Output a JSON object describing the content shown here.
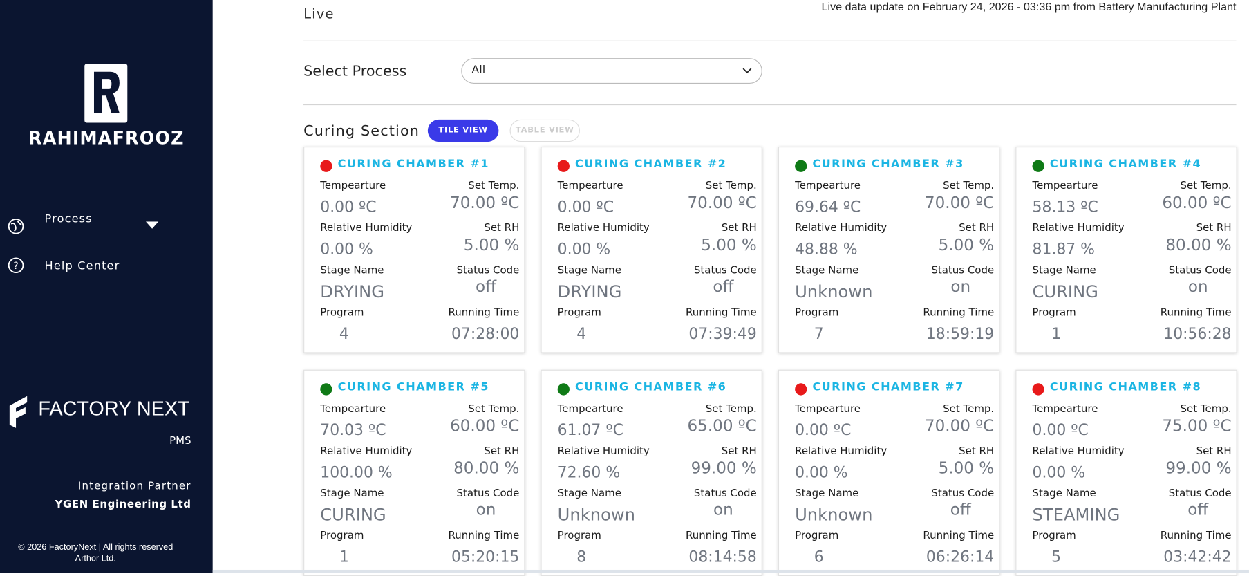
{
  "sidebar": {
    "brand": "RAHIMAFROOZ",
    "nav": [
      "Process",
      "Help Center"
    ],
    "product": "FACTORY NEXT",
    "product_sub": "PMS",
    "partner_label": "Integration Partner",
    "partner": "YGEN Engineering Ltd",
    "copyright": "© 2026 FactoryNext | All rights reserved",
    "copyright_2": "Arthor Ltd."
  },
  "header": {
    "title": "Live",
    "update": "Live data update on February 24, 2026 - 03:36 pm from Battery Manufacturing Plant"
  },
  "filter": {
    "label": "Select Process",
    "value": "All"
  },
  "section": {
    "title": "Curing Section",
    "tabs": [
      "TILE VIEW",
      "TABLE VIEW"
    ]
  },
  "labels": {
    "temp": "Tempearture",
    "set_temp": "Set Temp.",
    "rh": "Relative Humidity",
    "set_rh": "Set RH",
    "stage": "Stage Name",
    "status_code": "Status Code",
    "program": "Program",
    "running_time": "Running Time"
  },
  "chambers": [
    {
      "name": "CURING CHAMBER #1",
      "dot_color": "#e8191a",
      "temp": "0.00 ºC",
      "set_temp": "70.00 ºC",
      "rh": "0.00 %",
      "set_rh": "5.00 %",
      "stage": "DRYING",
      "status_code": "off",
      "program": "4",
      "running_time": "07:28:00"
    },
    {
      "name": "CURING CHAMBER #2",
      "dot_color": "#e8191a",
      "temp": "0.00 ºC",
      "set_temp": "70.00 ºC",
      "rh": "0.00 %",
      "set_rh": "5.00 %",
      "stage": "DRYING",
      "status_code": "off",
      "program": "4",
      "running_time": "07:39:49"
    },
    {
      "name": "CURING CHAMBER #3",
      "dot_color": "#0f7a16",
      "temp": "69.64 ºC",
      "set_temp": "70.00 ºC",
      "rh": "48.88 %",
      "set_rh": "5.00 %",
      "stage": "Unknown",
      "status_code": "on",
      "program": "7",
      "running_time": "18:59:19"
    },
    {
      "name": "CURING CHAMBER #4",
      "dot_color": "#0f7a16",
      "temp": "58.13 ºC",
      "set_temp": "60.00 ºC",
      "rh": "81.87 %",
      "set_rh": "80.00 %",
      "stage": "CURING",
      "status_code": "on",
      "program": "1",
      "running_time": "10:56:28"
    },
    {
      "name": "CURING CHAMBER #5",
      "dot_color": "#0f7a16",
      "temp": "70.03 ºC",
      "set_temp": "60.00 ºC",
      "rh": "100.00 %",
      "set_rh": "80.00 %",
      "stage": "CURING",
      "status_code": "on",
      "program": "1",
      "running_time": "05:20:15"
    },
    {
      "name": "CURING CHAMBER #6",
      "dot_color": "#0f7a16",
      "temp": "61.07 ºC",
      "set_temp": "65.00 ºC",
      "rh": "72.60 %",
      "set_rh": "99.00 %",
      "stage": "Unknown",
      "status_code": "on",
      "program": "8",
      "running_time": "08:14:58"
    },
    {
      "name": "CURING CHAMBER #7",
      "dot_color": "#e8191a",
      "temp": "0.00 ºC",
      "set_temp": "70.00 ºC",
      "rh": "0.00 %",
      "set_rh": "5.00 %",
      "stage": "Unknown",
      "status_code": "off",
      "program": "6",
      "running_time": "06:26:14"
    },
    {
      "name": "CURING CHAMBER #8",
      "dot_color": "#e8191a",
      "temp": "0.00 ºC",
      "set_temp": "75.00 ºC",
      "rh": "0.00 %",
      "set_rh": "99.00 %",
      "stage": "STEAMING",
      "status_code": "off",
      "program": "5",
      "running_time": "03:42:42"
    }
  ]
}
